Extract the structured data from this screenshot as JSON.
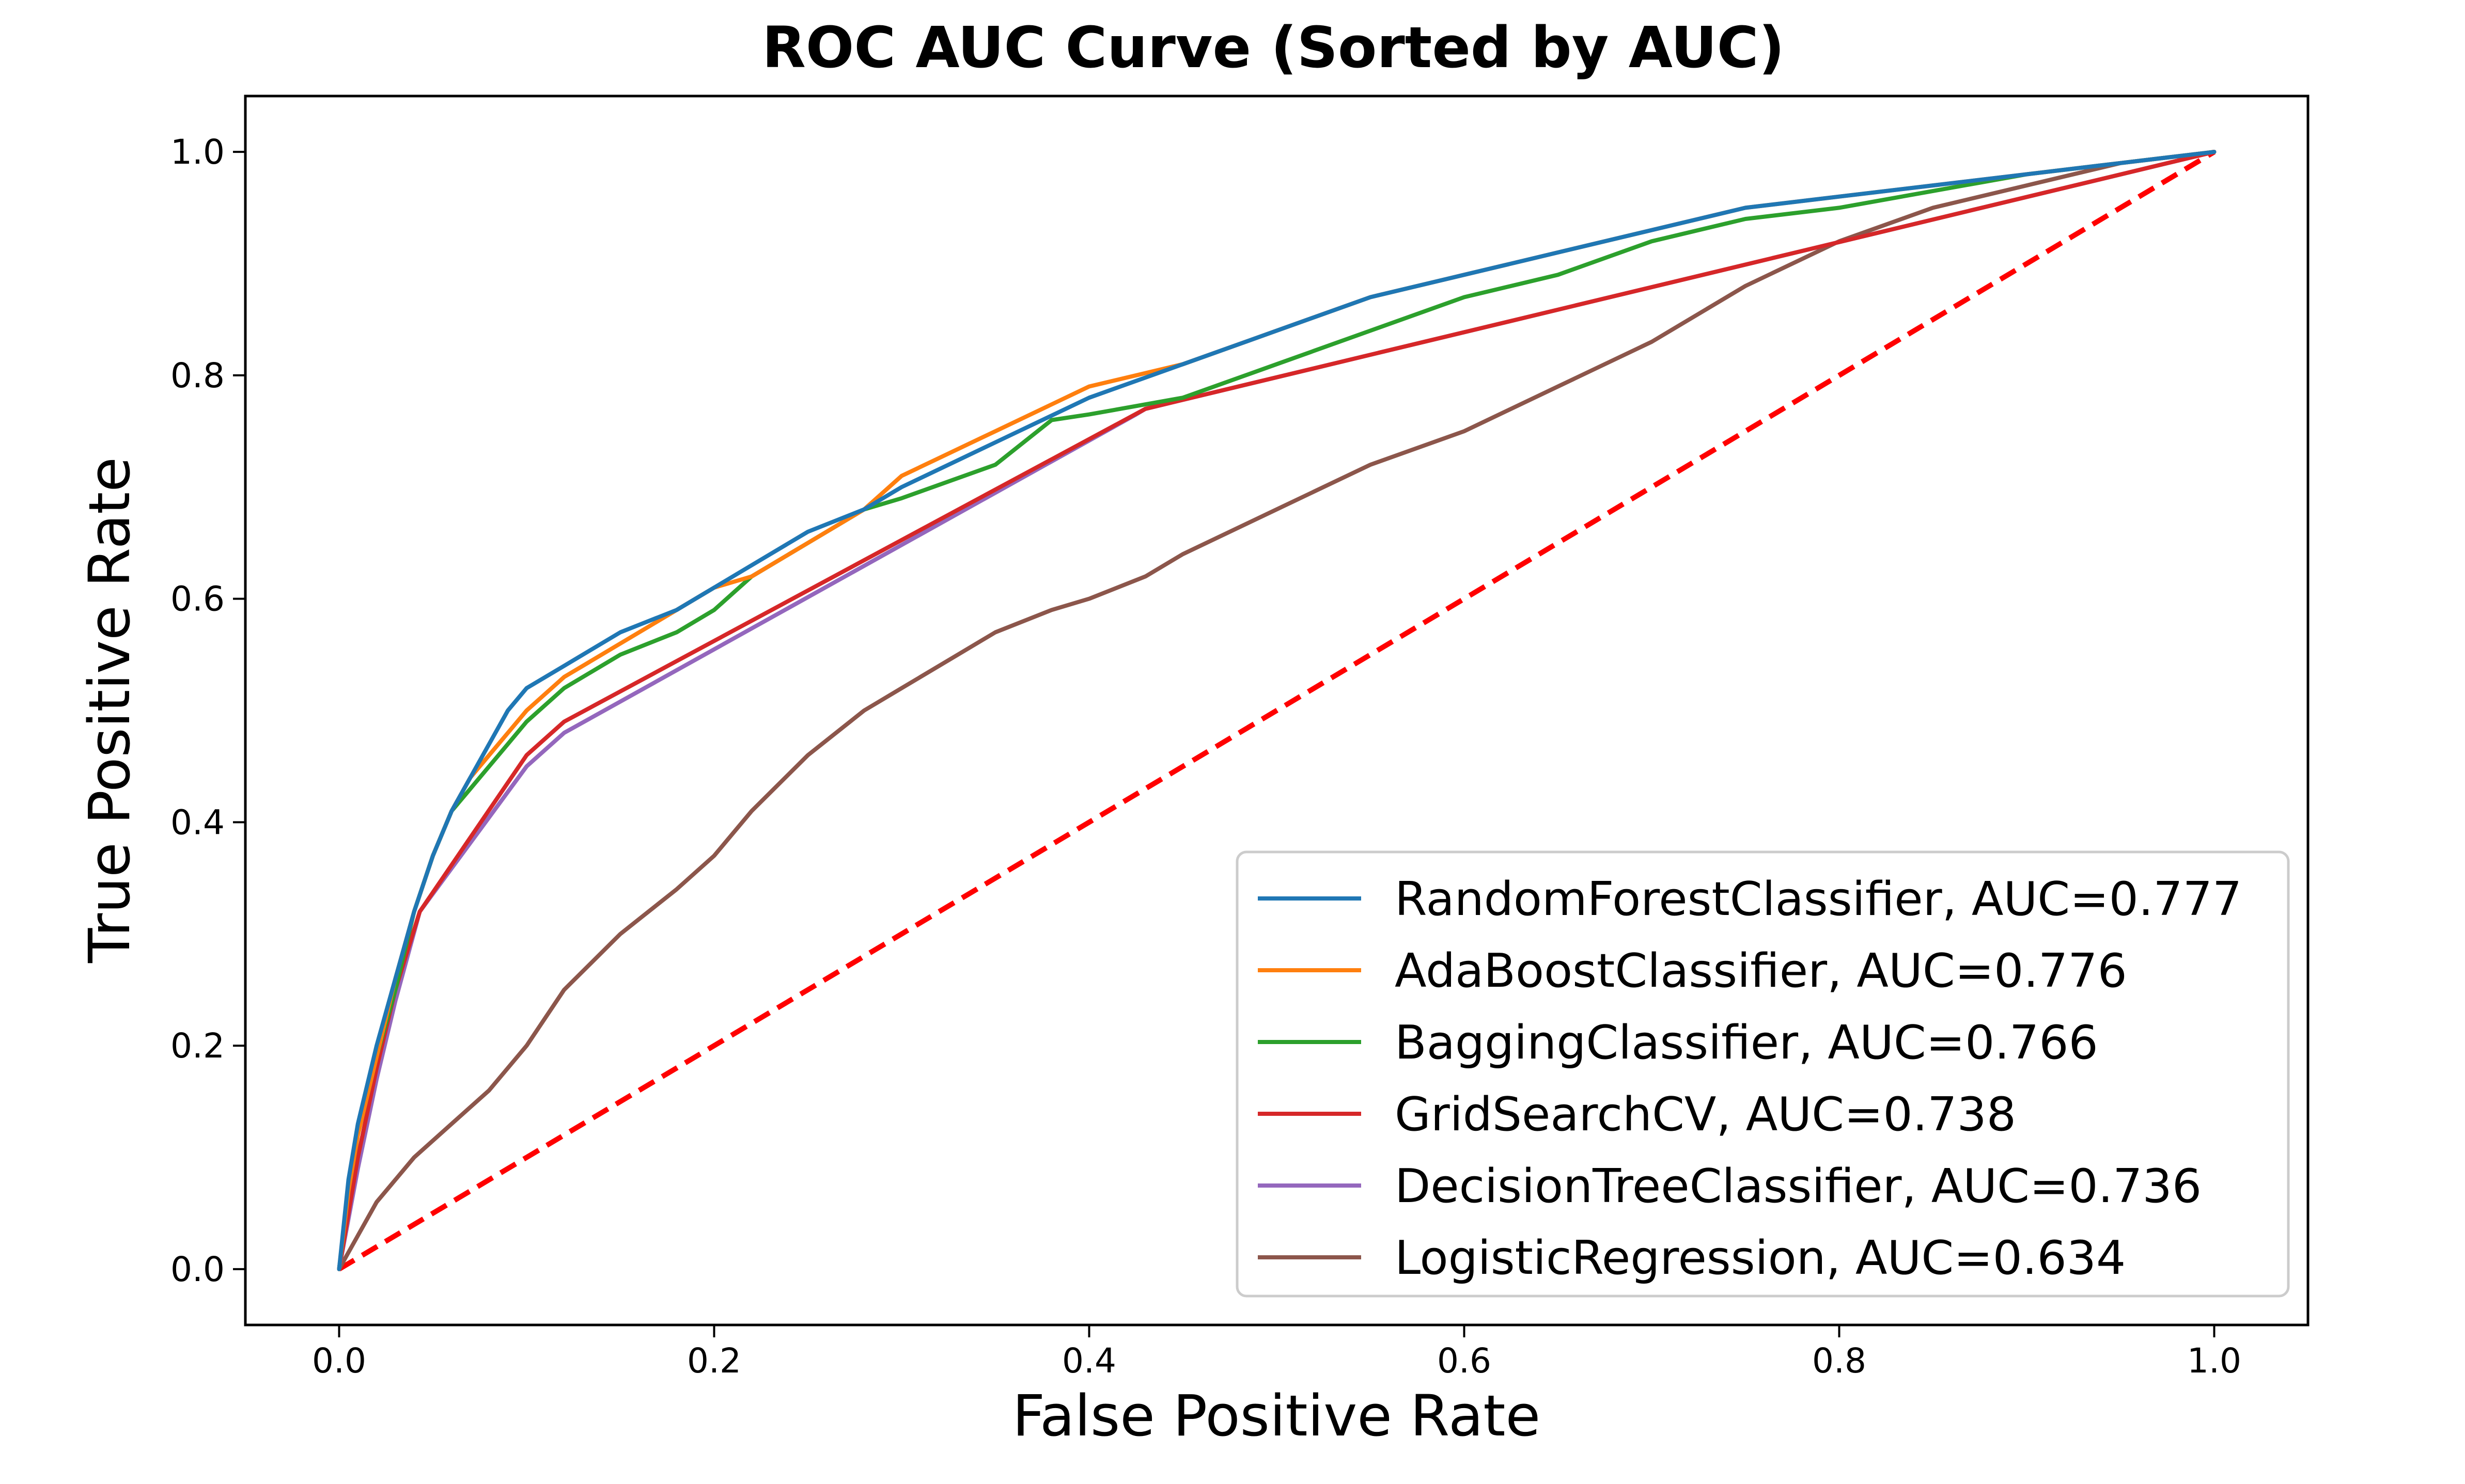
{
  "chart_data": {
    "type": "line",
    "title": "ROC AUC Curve (Sorted by AUC)",
    "xlabel": "False Positive Rate",
    "ylabel": "True Positive Rate",
    "xlim": [
      -0.05,
      1.05
    ],
    "ylim": [
      -0.05,
      1.05
    ],
    "xticks": [
      0.0,
      0.2,
      0.4,
      0.6,
      0.8,
      1.0
    ],
    "yticks": [
      0.0,
      0.2,
      0.4,
      0.6,
      0.8,
      1.0
    ],
    "xtick_labels": [
      "0.0",
      "0.2",
      "0.4",
      "0.6",
      "0.8",
      "1.0"
    ],
    "ytick_labels": [
      "0.0",
      "0.2",
      "0.4",
      "0.6",
      "0.8",
      "1.0"
    ],
    "grid": false,
    "legend_position": "lower-right",
    "series": [
      {
        "name": "RandomForestClassifier, AUC=0.777",
        "color": "#1f77b4",
        "x": [
          0,
          0.005,
          0.01,
          0.02,
          0.03,
          0.04,
          0.05,
          0.06,
          0.07,
          0.08,
          0.09,
          0.1,
          0.12,
          0.15,
          0.18,
          0.2,
          0.22,
          0.25,
          0.28,
          0.3,
          0.35,
          0.4,
          0.45,
          0.5,
          0.55,
          0.6,
          0.65,
          0.7,
          0.75,
          0.8,
          0.85,
          0.9,
          0.95,
          1.0
        ],
        "y": [
          0,
          0.08,
          0.13,
          0.2,
          0.26,
          0.32,
          0.37,
          0.41,
          0.44,
          0.47,
          0.5,
          0.52,
          0.54,
          0.57,
          0.59,
          0.61,
          0.63,
          0.66,
          0.68,
          0.7,
          0.74,
          0.78,
          0.81,
          0.84,
          0.87,
          0.89,
          0.91,
          0.93,
          0.95,
          0.96,
          0.97,
          0.98,
          0.99,
          1.0
        ]
      },
      {
        "name": "AdaBoostClassifier, AUC=0.776",
        "color": "#ff7f0e",
        "x": [
          0,
          0.005,
          0.01,
          0.02,
          0.03,
          0.04,
          0.05,
          0.06,
          0.07,
          0.08,
          0.09,
          0.1,
          0.12,
          0.15,
          0.18,
          0.2,
          0.22,
          0.25,
          0.28,
          0.3,
          0.35,
          0.4,
          0.45,
          0.5,
          0.55,
          0.6,
          0.65,
          0.7,
          0.75,
          0.8,
          0.85,
          0.9,
          0.95,
          1.0
        ],
        "y": [
          0,
          0.07,
          0.12,
          0.19,
          0.26,
          0.32,
          0.37,
          0.41,
          0.44,
          0.46,
          0.48,
          0.5,
          0.53,
          0.56,
          0.59,
          0.61,
          0.62,
          0.65,
          0.68,
          0.71,
          0.75,
          0.79,
          0.81,
          0.84,
          0.87,
          0.89,
          0.91,
          0.93,
          0.95,
          0.96,
          0.97,
          0.98,
          0.99,
          1.0
        ]
      },
      {
        "name": "BaggingClassifier, AUC=0.766",
        "color": "#2ca02c",
        "x": [
          0,
          0.005,
          0.01,
          0.02,
          0.03,
          0.04,
          0.05,
          0.06,
          0.07,
          0.08,
          0.09,
          0.1,
          0.12,
          0.15,
          0.18,
          0.2,
          0.22,
          0.25,
          0.28,
          0.3,
          0.35,
          0.38,
          0.4,
          0.45,
          0.5,
          0.55,
          0.6,
          0.65,
          0.7,
          0.75,
          0.8,
          0.85,
          0.9,
          0.95,
          1.0
        ],
        "y": [
          0,
          0.07,
          0.12,
          0.19,
          0.25,
          0.32,
          0.37,
          0.41,
          0.43,
          0.45,
          0.47,
          0.49,
          0.52,
          0.55,
          0.57,
          0.59,
          0.62,
          0.65,
          0.68,
          0.69,
          0.72,
          0.76,
          0.765,
          0.78,
          0.81,
          0.84,
          0.87,
          0.89,
          0.92,
          0.94,
          0.95,
          0.965,
          0.98,
          0.99,
          1.0
        ]
      },
      {
        "name": "GridSearchCV, AUC=0.738",
        "color": "#d62728",
        "x": [
          0,
          0.01,
          0.02,
          0.03,
          0.043,
          0.1,
          0.12,
          0.43,
          1.0
        ],
        "y": [
          0,
          0.1,
          0.18,
          0.25,
          0.32,
          0.46,
          0.49,
          0.77,
          1.0
        ]
      },
      {
        "name": "DecisionTreeClassifier, AUC=0.736",
        "color": "#9467bd",
        "x": [
          0,
          0.01,
          0.02,
          0.03,
          0.043,
          0.1,
          0.12,
          0.425,
          0.43,
          1.0
        ],
        "y": [
          0,
          0.09,
          0.17,
          0.24,
          0.32,
          0.45,
          0.48,
          0.765,
          0.77,
          1.0
        ]
      },
      {
        "name": "LogisticRegression, AUC=0.634",
        "color": "#8c564b",
        "x": [
          0,
          0.01,
          0.02,
          0.04,
          0.06,
          0.08,
          0.1,
          0.12,
          0.15,
          0.18,
          0.2,
          0.22,
          0.25,
          0.28,
          0.3,
          0.33,
          0.35,
          0.38,
          0.4,
          0.43,
          0.45,
          0.5,
          0.55,
          0.6,
          0.65,
          0.7,
          0.75,
          0.8,
          0.85,
          0.9,
          0.95,
          1.0
        ],
        "y": [
          0,
          0.03,
          0.06,
          0.1,
          0.13,
          0.16,
          0.2,
          0.25,
          0.3,
          0.34,
          0.37,
          0.41,
          0.46,
          0.5,
          0.52,
          0.55,
          0.57,
          0.59,
          0.6,
          0.62,
          0.64,
          0.68,
          0.72,
          0.75,
          0.79,
          0.83,
          0.88,
          0.92,
          0.95,
          0.97,
          0.99,
          1.0
        ]
      }
    ],
    "reference_line": {
      "color": "#ff0000",
      "style": "dashed",
      "x": [
        0,
        1
      ],
      "y": [
        0,
        1
      ]
    }
  }
}
